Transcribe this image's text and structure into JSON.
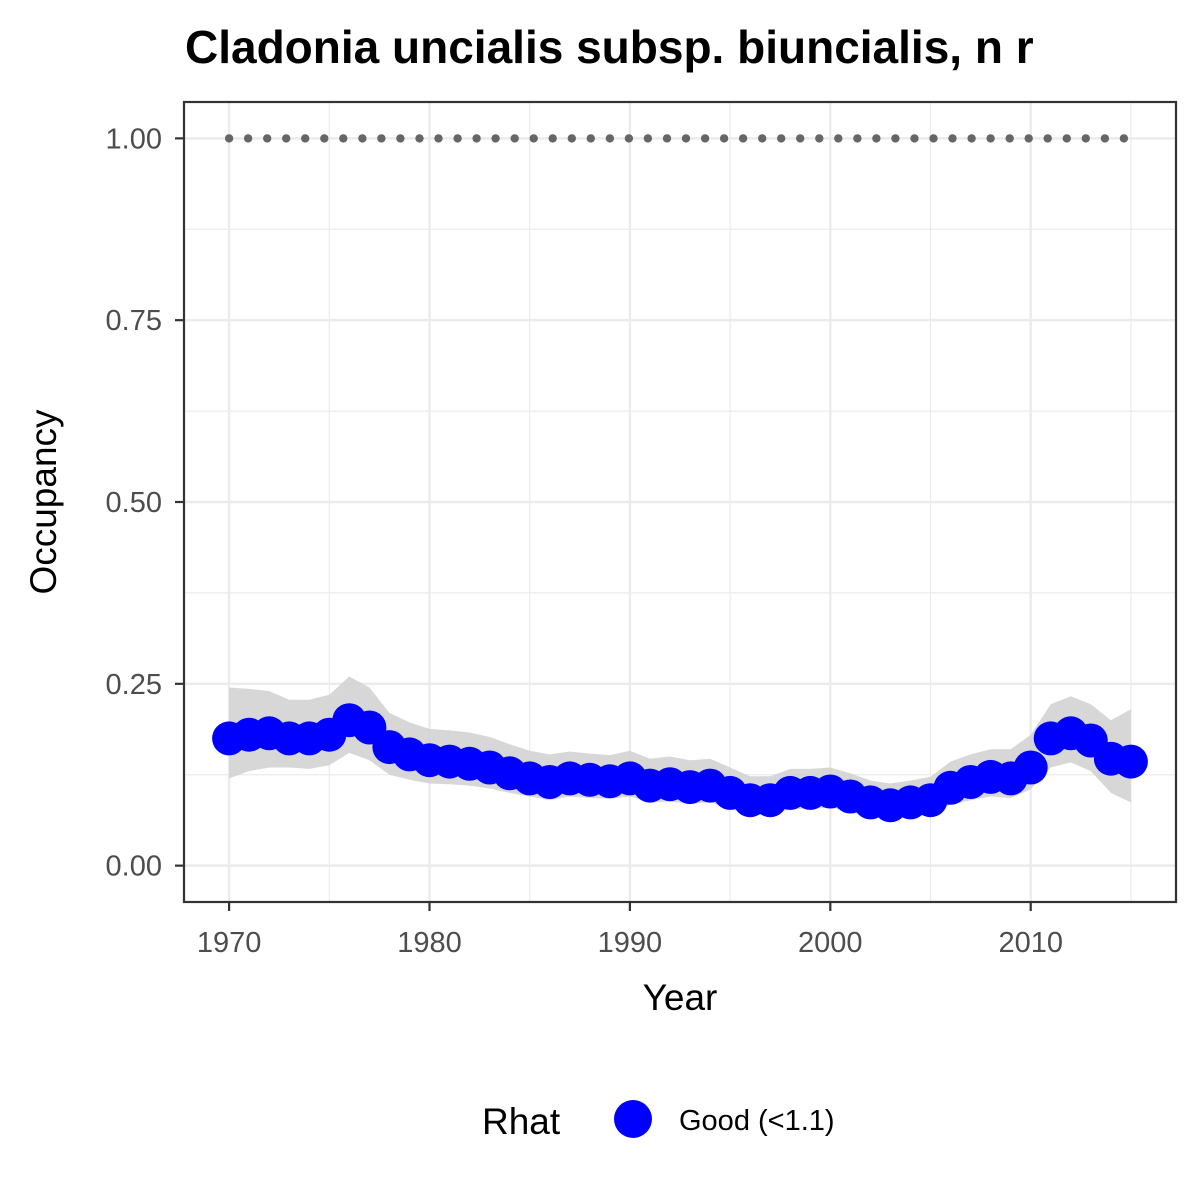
{
  "chart_data": {
    "type": "line",
    "title": "Cladonia uncialis subsp. biuncialis, n r",
    "xlabel": "Year",
    "ylabel": "Occupancy",
    "xlim": [
      1970,
      2015
    ],
    "ylim": [
      0,
      1
    ],
    "x_ticks": [
      "1970",
      "1980",
      "1990",
      "2000",
      "2010"
    ],
    "y_ticks": [
      "0.00",
      "0.25",
      "0.50",
      "0.75",
      "1.00"
    ],
    "grid": true,
    "colors": {
      "points": "#0000ff",
      "ribbon": "#d3d3d3",
      "reference_line": "#666666",
      "grid": "#ebebeb",
      "panel_border": "#333333"
    },
    "reference_line": {
      "y": 1.0,
      "style": "dotted"
    },
    "x": [
      1970,
      1971,
      1972,
      1973,
      1974,
      1975,
      1976,
      1977,
      1978,
      1979,
      1980,
      1981,
      1982,
      1983,
      1984,
      1985,
      1986,
      1987,
      1988,
      1989,
      1990,
      1991,
      1992,
      1993,
      1994,
      1995,
      1996,
      1997,
      1998,
      1999,
      2000,
      2001,
      2002,
      2003,
      2004,
      2005,
      2006,
      2007,
      2008,
      2009,
      2010,
      2011,
      2012,
      2013,
      2014,
      2015
    ],
    "series": [
      {
        "values": [
          0.175,
          0.18,
          0.182,
          0.175,
          0.175,
          0.18,
          0.2,
          0.19,
          0.163,
          0.153,
          0.145,
          0.143,
          0.14,
          0.135,
          0.127,
          0.12,
          0.115,
          0.12,
          0.118,
          0.116,
          0.12,
          0.11,
          0.112,
          0.108,
          0.11,
          0.1,
          0.09,
          0.09,
          0.1,
          0.1,
          0.102,
          0.095,
          0.087,
          0.083,
          0.087,
          0.09,
          0.107,
          0.115,
          0.122,
          0.12,
          0.135,
          0.175,
          0.182,
          0.172,
          0.147,
          0.143
        ],
        "lower": [
          0.12,
          0.13,
          0.135,
          0.135,
          0.133,
          0.138,
          0.155,
          0.145,
          0.125,
          0.118,
          0.113,
          0.112,
          0.11,
          0.106,
          0.1,
          0.095,
          0.09,
          0.095,
          0.093,
          0.092,
          0.095,
          0.087,
          0.088,
          0.085,
          0.087,
          0.078,
          0.07,
          0.07,
          0.078,
          0.078,
          0.08,
          0.074,
          0.067,
          0.064,
          0.067,
          0.07,
          0.084,
          0.09,
          0.095,
          0.093,
          0.105,
          0.135,
          0.142,
          0.13,
          0.1,
          0.087
        ],
        "upper": [
          0.245,
          0.243,
          0.24,
          0.228,
          0.228,
          0.235,
          0.26,
          0.245,
          0.21,
          0.197,
          0.188,
          0.186,
          0.183,
          0.177,
          0.167,
          0.158,
          0.153,
          0.157,
          0.154,
          0.152,
          0.158,
          0.147,
          0.15,
          0.145,
          0.147,
          0.135,
          0.123,
          0.123,
          0.133,
          0.133,
          0.135,
          0.127,
          0.117,
          0.113,
          0.117,
          0.122,
          0.143,
          0.153,
          0.16,
          0.16,
          0.18,
          0.222,
          0.233,
          0.222,
          0.2,
          0.215
        ]
      }
    ],
    "legend": {
      "position": "bottom",
      "title": "Rhat",
      "items": [
        {
          "label": "Good (<1.1)",
          "color": "#0000ff"
        }
      ]
    }
  }
}
